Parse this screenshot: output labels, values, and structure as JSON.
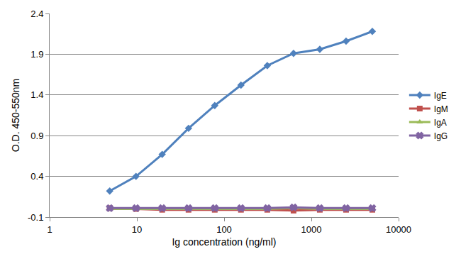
{
  "chart_data": {
    "type": "line",
    "x_label": "Ig concentration (ng/ml)",
    "y_label": "O.D. 450-550nm",
    "x": [
      4.88,
      9.77,
      19.5,
      39.1,
      78.1,
      156,
      312.5,
      625,
      1250,
      2500,
      5000
    ],
    "series": [
      {
        "name": "IgE",
        "color": "#4f81bd",
        "marker": "diamond",
        "values": [
          0.22,
          0.4,
          0.67,
          0.99,
          1.27,
          1.52,
          1.76,
          1.91,
          1.96,
          2.06,
          2.18
        ]
      },
      {
        "name": "IgM",
        "color": "#c0504d",
        "marker": "square",
        "values": [
          0.01,
          0.0,
          -0.01,
          -0.01,
          -0.01,
          -0.01,
          -0.01,
          -0.02,
          -0.01,
          -0.01,
          -0.01
        ]
      },
      {
        "name": "IgA",
        "color": "#9bbb59",
        "marker": "triangle",
        "values": [
          0.0,
          0.0,
          0.0,
          0.0,
          0.0,
          0.0,
          0.0,
          0.01,
          0.0,
          0.0,
          0.0
        ]
      },
      {
        "name": "IgG",
        "color": "#8064a2",
        "marker": "x",
        "values": [
          0.01,
          0.01,
          0.01,
          0.01,
          0.01,
          0.01,
          0.01,
          0.02,
          0.01,
          0.01,
          0.01
        ]
      }
    ],
    "xlim": [
      1,
      10000
    ],
    "xticks": [
      1,
      10,
      100,
      1000,
      10000
    ],
    "ylim": [
      -0.1,
      2.4
    ],
    "yticks": [
      -0.1,
      0.4,
      0.9,
      1.4,
      1.9,
      2.4
    ],
    "log": "x",
    "grid": true,
    "legend": "right"
  }
}
